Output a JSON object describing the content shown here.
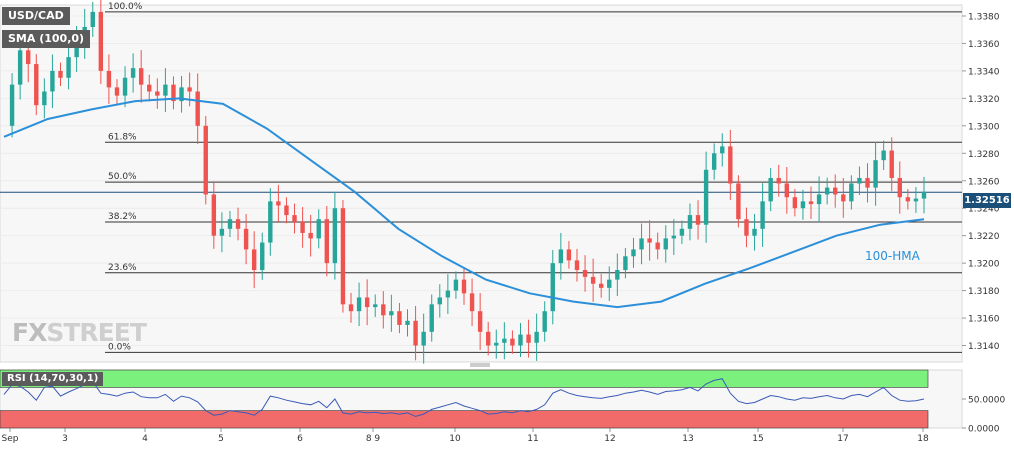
{
  "header": {
    "symbol_badge": "USD/CAD",
    "indicator_badge": "SMA (100,0)"
  },
  "rsi_badge": "RSI (14,70,30,1)",
  "current_price_tag": "1.32516",
  "watermark": {
    "fx": "FX",
    "rest": "STREET"
  },
  "hma_label": "100-HMA",
  "colors": {
    "up": "#26a69a",
    "down": "#ef5350",
    "hma": "#2b8fd9",
    "rsi": "#3a5ab8",
    "overbought_zone": "#7cf07c",
    "oversold_zone": "#f26b6b",
    "price_tag": "#1a4f7a"
  },
  "chart_data": [
    {
      "type": "candlestick",
      "title": "USD/CAD",
      "ylim": [
        1.3128,
        1.3388
      ],
      "y_ticks": [
        "1.3380",
        "1.3360",
        "1.3340",
        "1.3320",
        "1.3300",
        "1.3280",
        "1.3260",
        "1.3240",
        "1.3220",
        "1.3200",
        "1.3180",
        "1.3160",
        "1.3140"
      ],
      "x_tick_labels": [
        "Sep",
        "3",
        "4",
        "5",
        "6",
        "8 9",
        "10",
        "11",
        "12",
        "13",
        "15",
        "17",
        "18"
      ],
      "fibonacci": [
        {
          "label": "100.0%",
          "value": 1.3383
        },
        {
          "label": "61.8%",
          "value": 1.3288
        },
        {
          "label": "50.0%",
          "value": 1.3259
        },
        {
          "label": "38.2%",
          "value": 1.323
        },
        {
          "label": "23.6%",
          "value": 1.3193
        },
        {
          "label": "0.0%",
          "value": 1.3135
        }
      ],
      "current_price": 1.32516,
      "price_path": [
        1.33,
        1.333,
        1.3355,
        1.3345,
        1.3315,
        1.3325,
        1.334,
        1.3335,
        1.335,
        1.3362,
        1.3372,
        1.3383,
        1.334,
        1.3328,
        1.3322,
        1.3335,
        1.3342,
        1.333,
        1.3325,
        1.3322,
        1.333,
        1.3318,
        1.3328,
        1.3325,
        1.33,
        1.325,
        1.322,
        1.3225,
        1.3232,
        1.3225,
        1.321,
        1.3195,
        1.3215,
        1.3245,
        1.3242,
        1.3235,
        1.323,
        1.3222,
        1.3218,
        1.3232,
        1.32,
        1.324,
        1.317,
        1.3165,
        1.3175,
        1.3168,
        1.317,
        1.3162,
        1.3165,
        1.3155,
        1.3158,
        1.314,
        1.315,
        1.317,
        1.3175,
        1.318,
        1.3188,
        1.3178,
        1.3165,
        1.315,
        1.314,
        1.3142,
        1.3145,
        1.314,
        1.3148,
        1.3142,
        1.315,
        1.3165,
        1.32,
        1.321,
        1.3202,
        1.3195,
        1.319,
        1.3185,
        1.3182,
        1.3188,
        1.3195,
        1.3205,
        1.321,
        1.3218,
        1.3215,
        1.321,
        1.3218,
        1.322,
        1.3225,
        1.3235,
        1.3228,
        1.3268,
        1.328,
        1.3285,
        1.3258,
        1.3232,
        1.322,
        1.3225,
        1.3245,
        1.3262,
        1.3258,
        1.3248,
        1.324,
        1.3245,
        1.3243,
        1.325,
        1.3255,
        1.325,
        1.3245,
        1.3258,
        1.3262,
        1.3255,
        1.3275,
        1.3282,
        1.3262,
        1.3248,
        1.3245,
        1.3247,
        1.3252
      ],
      "hma_100": [
        1.3292,
        1.3305,
        1.3312,
        1.3318,
        1.332,
        1.3316,
        1.3298,
        1.3275,
        1.3252,
        1.3225,
        1.3205,
        1.3188,
        1.3178,
        1.3172,
        1.3168,
        1.3172,
        1.3185,
        1.3196,
        1.3208,
        1.322,
        1.3228,
        1.3232
      ]
    },
    {
      "type": "line",
      "title": "RSI (14,70,30,1)",
      "y_ticks": [
        "50.0000",
        "0.0000"
      ],
      "ylim": [
        0,
        100
      ],
      "overbought": 70,
      "oversold": 30,
      "rsi_values": [
        58,
        75,
        72,
        62,
        48,
        70,
        72,
        55,
        62,
        68,
        75,
        80,
        60,
        58,
        55,
        60,
        62,
        54,
        52,
        52,
        58,
        46,
        55,
        52,
        45,
        30,
        22,
        24,
        30,
        28,
        26,
        22,
        32,
        55,
        52,
        48,
        45,
        42,
        40,
        46,
        35,
        50,
        26,
        24,
        28,
        26,
        27,
        25,
        26,
        24,
        26,
        20,
        24,
        32,
        36,
        40,
        44,
        38,
        34,
        30,
        24,
        25,
        28,
        26,
        30,
        28,
        32,
        40,
        60,
        66,
        60,
        56,
        54,
        52,
        51,
        54,
        56,
        60,
        62,
        65,
        62,
        58,
        63,
        64,
        66,
        70,
        64,
        76,
        82,
        85,
        60,
        46,
        42,
        44,
        50,
        56,
        54,
        50,
        48,
        52,
        51,
        54,
        56,
        52,
        50,
        56,
        58,
        54,
        62,
        70,
        56,
        48,
        46,
        47,
        50
      ]
    }
  ]
}
